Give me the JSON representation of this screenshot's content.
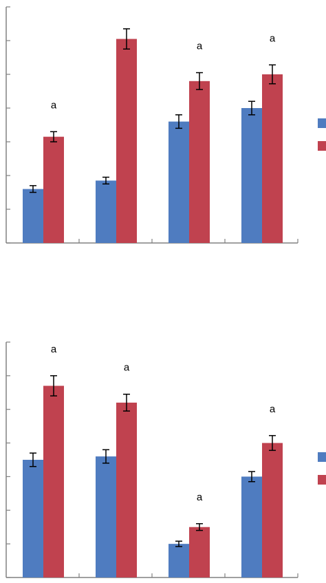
{
  "chart_data": [
    {
      "type": "bar",
      "title": "",
      "xlabel": "",
      "ylabel": "",
      "ylim": [
        0,
        7
      ],
      "categories": [
        "",
        "",
        "",
        ""
      ],
      "series": [
        {
          "color": "#4f7cc0",
          "values": [
            1.6,
            1.85,
            3.6,
            4.0
          ],
          "errors": [
            0.1,
            0.1,
            0.2,
            0.2
          ]
        },
        {
          "color": "#c0424f",
          "values": [
            3.15,
            6.05,
            4.8,
            5.0
          ],
          "errors": [
            0.15,
            0.3,
            0.25,
            0.28
          ]
        }
      ],
      "annotations": [
        "a",
        "",
        "a",
        "a"
      ],
      "legend": {
        "placement": "right",
        "entries": [
          "",
          ""
        ]
      },
      "grid": false
    },
    {
      "type": "bar",
      "title": "",
      "xlabel": "",
      "ylabel": "",
      "ylim": [
        0,
        7
      ],
      "categories": [
        "",
        "",
        "",
        ""
      ],
      "series": [
        {
          "color": "#4f7cc0",
          "values": [
            3.5,
            3.6,
            1.0,
            3.0
          ],
          "errors": [
            0.2,
            0.2,
            0.08,
            0.15
          ]
        },
        {
          "color": "#c0424f",
          "values": [
            5.7,
            5.2,
            1.5,
            4.0
          ],
          "errors": [
            0.3,
            0.25,
            0.1,
            0.22
          ]
        }
      ],
      "annotations": [
        "a",
        "a",
        "a",
        "a"
      ],
      "legend": {
        "placement": "right",
        "entries": [
          "",
          ""
        ]
      },
      "grid": false
    }
  ]
}
